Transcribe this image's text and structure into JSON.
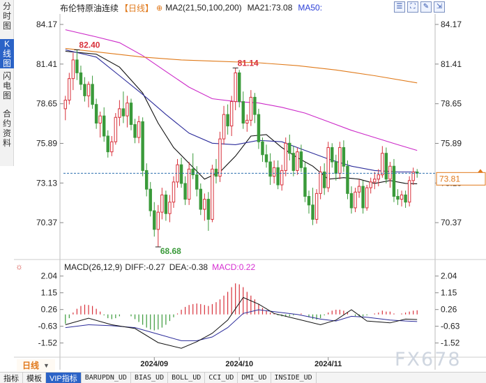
{
  "left_tabs": [
    {
      "label": "分时图",
      "active": false
    },
    {
      "label": "K线图",
      "active": true
    },
    {
      "label": "闪电图",
      "active": false
    },
    {
      "label": "合约资料",
      "active": false
    }
  ],
  "header": {
    "instrument": "布伦特原油连续",
    "period": "【日线】",
    "ma_label": "MA2(21,50,100,200)",
    "ma21": "MA21:73.08",
    "ma50": "MA50:"
  },
  "macd_header": {
    "label": "MACD(26,12,9)",
    "diff": "DIFF:-0.27",
    "dea": "DEA:-0.38",
    "macd": "MACD:0.22"
  },
  "period_badge": "日线",
  "watermark": "FX678",
  "bottom_tabs": [
    "指标",
    "模板",
    "VIP指标",
    "BARUPDN_UD",
    "BIAS_UD",
    "BOLL_UD",
    "CCI_UD",
    "DMI_UD",
    "INSIDE_UD"
  ],
  "colors": {
    "up": "#d8303a",
    "down": "#3a9a3a",
    "ma_black": "#111111",
    "ma_blue": "#2b2b9a",
    "ma_magenta": "#cc28c8",
    "ma_orange": "#e07a1a",
    "last_price": "#e0781a"
  },
  "chart_data": [
    {
      "type": "candlestick",
      "name": "price",
      "y_ticks": [
        "84.17",
        "81.41",
        "78.65",
        "75.89",
        "73.13",
        "70.37"
      ],
      "y_tick_values": [
        84.17,
        81.41,
        78.65,
        75.89,
        73.13,
        70.37
      ],
      "ylim": [
        67.9,
        84.9
      ],
      "x_ticks": [
        "2024/09",
        "2024/10",
        "2024/11"
      ],
      "x_tick_index": [
        23,
        45,
        68
      ],
      "last_price": 73.81,
      "last_price_label": "73.81",
      "annotations": [
        {
          "label": "82.40",
          "index": 3,
          "value": 82.4
        },
        {
          "label": "81.14",
          "index": 44,
          "value": 81.14
        },
        {
          "label": "68.68",
          "index": 24,
          "value": 68.68
        }
      ],
      "ohlc": [
        [
          78.3,
          79.2,
          77.5,
          78.9
        ],
        [
          78.9,
          80.8,
          78.6,
          80.4
        ],
        [
          80.4,
          82.2,
          79.6,
          81.7
        ],
        [
          81.7,
          82.4,
          80.3,
          80.8
        ],
        [
          80.8,
          81.3,
          79.6,
          80.0
        ],
        [
          80.0,
          80.5,
          78.8,
          79.2
        ],
        [
          79.2,
          80.2,
          78.4,
          80.0
        ],
        [
          80.0,
          80.6,
          78.3,
          78.6
        ],
        [
          78.6,
          79.0,
          76.9,
          77.3
        ],
        [
          77.3,
          78.1,
          76.3,
          77.8
        ],
        [
          77.8,
          78.4,
          76.0,
          76.4
        ],
        [
          76.4,
          76.8,
          74.9,
          75.3
        ],
        [
          75.3,
          76.4,
          75.0,
          76.0
        ],
        [
          76.0,
          78.0,
          75.8,
          77.7
        ],
        [
          77.7,
          78.9,
          77.1,
          78.3
        ],
        [
          78.3,
          79.5,
          77.3,
          77.8
        ],
        [
          77.8,
          79.2,
          77.0,
          78.7
        ],
        [
          78.7,
          79.0,
          76.8,
          77.2
        ],
        [
          77.2,
          77.6,
          75.9,
          76.3
        ],
        [
          76.3,
          77.8,
          75.9,
          77.4
        ],
        [
          77.4,
          77.7,
          73.6,
          74.0
        ],
        [
          74.0,
          74.5,
          72.2,
          72.7
        ],
        [
          72.7,
          73.2,
          70.8,
          71.2
        ],
        [
          71.2,
          71.8,
          69.4,
          69.9
        ],
        [
          69.9,
          71.6,
          68.68,
          71.1
        ],
        [
          71.1,
          72.8,
          70.6,
          72.3
        ],
        [
          72.3,
          72.6,
          70.5,
          71.0
        ],
        [
          71.0,
          72.3,
          70.4,
          71.8
        ],
        [
          71.8,
          73.6,
          71.4,
          73.2
        ],
        [
          73.2,
          74.8,
          72.8,
          74.4
        ],
        [
          74.4,
          74.9,
          72.8,
          73.1
        ],
        [
          73.1,
          73.6,
          71.6,
          72.0
        ],
        [
          72.0,
          74.6,
          71.6,
          74.1
        ],
        [
          74.1,
          75.2,
          73.4,
          73.7
        ],
        [
          73.7,
          74.3,
          72.2,
          72.7
        ],
        [
          72.7,
          73.1,
          70.9,
          71.3
        ],
        [
          71.3,
          72.4,
          70.5,
          72.0
        ],
        [
          72.0,
          72.5,
          69.8,
          70.6
        ],
        [
          70.6,
          74.4,
          70.4,
          74.1
        ],
        [
          74.1,
          74.8,
          73.1,
          73.6
        ],
        [
          73.6,
          76.7,
          73.2,
          76.2
        ],
        [
          76.2,
          78.5,
          75.8,
          77.9
        ],
        [
          77.9,
          78.6,
          76.5,
          77.1
        ],
        [
          77.1,
          79.2,
          76.4,
          78.8
        ],
        [
          78.8,
          81.14,
          78.2,
          80.8
        ],
        [
          80.8,
          81.0,
          78.4,
          78.8
        ],
        [
          78.8,
          79.5,
          76.9,
          77.3
        ],
        [
          77.3,
          77.9,
          76.7,
          77.5
        ],
        [
          77.5,
          79.6,
          77.1,
          79.1
        ],
        [
          79.1,
          79.4,
          77.3,
          77.9
        ],
        [
          77.9,
          78.3,
          75.5,
          76.0
        ],
        [
          76.0,
          76.3,
          74.6,
          75.1
        ],
        [
          75.1,
          75.8,
          74.2,
          74.6
        ],
        [
          74.6,
          75.2,
          73.0,
          73.6
        ],
        [
          73.6,
          74.7,
          73.1,
          74.2
        ],
        [
          74.2,
          74.7,
          72.7,
          73.0
        ],
        [
          73.0,
          74.4,
          72.6,
          74.0
        ],
        [
          74.0,
          76.3,
          73.6,
          75.9
        ],
        [
          75.9,
          76.5,
          74.7,
          75.2
        ],
        [
          75.2,
          75.7,
          73.6,
          74.0
        ],
        [
          74.0,
          75.6,
          73.7,
          75.3
        ],
        [
          75.3,
          75.8,
          73.9,
          74.2
        ],
        [
          74.2,
          74.6,
          71.8,
          72.2
        ],
        [
          72.2,
          72.6,
          71.0,
          71.6
        ],
        [
          71.6,
          72.8,
          70.2,
          70.6
        ],
        [
          70.6,
          72.7,
          70.3,
          72.4
        ],
        [
          72.4,
          74.3,
          72.0,
          73.9
        ],
        [
          73.9,
          74.5,
          72.3,
          72.8
        ],
        [
          72.8,
          76.0,
          72.5,
          75.6
        ],
        [
          75.6,
          75.9,
          74.2,
          74.6
        ],
        [
          74.6,
          75.1,
          73.3,
          73.8
        ],
        [
          73.8,
          76.0,
          73.4,
          75.6
        ],
        [
          75.6,
          76.1,
          73.9,
          74.3
        ],
        [
          74.3,
          74.7,
          72.0,
          72.4
        ],
        [
          72.4,
          72.9,
          71.0,
          71.4
        ],
        [
          71.4,
          72.8,
          71.1,
          72.5
        ],
        [
          72.5,
          73.4,
          72.1,
          72.9
        ],
        [
          72.9,
          73.3,
          71.0,
          71.4
        ],
        [
          71.4,
          73.0,
          71.2,
          72.8
        ],
        [
          72.8,
          73.5,
          72.4,
          73.2
        ],
        [
          73.2,
          73.9,
          72.7,
          73.4
        ],
        [
          73.4,
          74.1,
          72.9,
          73.7
        ],
        [
          73.7,
          75.7,
          73.5,
          75.2
        ],
        [
          75.2,
          75.6,
          73.1,
          73.4
        ],
        [
          73.4,
          74.6,
          72.8,
          74.3
        ],
        [
          74.3,
          74.8,
          71.8,
          72.2
        ],
        [
          72.2,
          72.7,
          71.6,
          72.0
        ],
        [
          72.0,
          72.6,
          71.5,
          72.3
        ],
        [
          72.3,
          72.6,
          71.4,
          71.8
        ],
        [
          71.8,
          73.6,
          71.5,
          73.3
        ],
        [
          73.3,
          74.2,
          73.0,
          73.9
        ],
        [
          73.9,
          74.1,
          73.5,
          73.81
        ]
      ],
      "ma_lines": [
        {
          "key": "ma_black",
          "values": [
            [
              0,
              82.3
            ],
            [
              8,
              82.1
            ],
            [
              14,
              81.2
            ],
            [
              20,
              79.4
            ],
            [
              24,
              77.3
            ],
            [
              28,
              75.6
            ],
            [
              32,
              74.5
            ],
            [
              36,
              73.4
            ],
            [
              40,
              73.9
            ],
            [
              44,
              75.0
            ],
            [
              48,
              76.4
            ],
            [
              52,
              76.5
            ],
            [
              56,
              75.6
            ],
            [
              60,
              74.9
            ],
            [
              64,
              74.3
            ],
            [
              68,
              73.4
            ],
            [
              72,
              73.5
            ],
            [
              76,
              73.4
            ],
            [
              80,
              73.1
            ],
            [
              84,
              73.3
            ],
            [
              88,
              73.1
            ],
            [
              91,
              73.08
            ]
          ]
        },
        {
          "key": "ma_blue",
          "values": [
            [
              0,
              82.4
            ],
            [
              8,
              81.9
            ],
            [
              14,
              80.6
            ],
            [
              20,
              79.3
            ],
            [
              26,
              77.9
            ],
            [
              32,
              76.6
            ],
            [
              38,
              75.9
            ],
            [
              44,
              75.8
            ],
            [
              50,
              76.1
            ],
            [
              56,
              76.0
            ],
            [
              62,
              75.4
            ],
            [
              68,
              74.8
            ],
            [
              74,
              74.3
            ],
            [
              80,
              74.0
            ],
            [
              86,
              73.9
            ],
            [
              91,
              73.9
            ]
          ]
        },
        {
          "key": "ma_magenta",
          "values": [
            [
              0,
              83.8
            ],
            [
              8,
              83.3
            ],
            [
              14,
              82.9
            ],
            [
              20,
              82.0
            ],
            [
              26,
              80.9
            ],
            [
              32,
              79.8
            ],
            [
              38,
              79.0
            ],
            [
              44,
              78.8
            ],
            [
              50,
              78.7
            ],
            [
              56,
              78.4
            ],
            [
              62,
              78.0
            ],
            [
              68,
              77.4
            ],
            [
              74,
              76.8
            ],
            [
              80,
              76.3
            ],
            [
              86,
              75.8
            ],
            [
              91,
              75.4
            ]
          ]
        },
        {
          "key": "ma_orange",
          "values": [
            [
              0,
              82.5
            ],
            [
              10,
              82.2
            ],
            [
              20,
              81.9
            ],
            [
              30,
              81.7
            ],
            [
              40,
              81.6
            ],
            [
              50,
              81.5
            ],
            [
              60,
              81.3
            ],
            [
              70,
              81.0
            ],
            [
              80,
              80.6
            ],
            [
              91,
              80.1
            ]
          ]
        }
      ]
    },
    {
      "type": "bar+line",
      "name": "macd",
      "y_ticks": [
        "2.04",
        "1.15",
        "0.26",
        "-0.63",
        "-1.52"
      ],
      "y_tick_values": [
        2.04,
        1.15,
        0.26,
        -0.63,
        -1.52
      ],
      "ylim": [
        -2.2,
        2.4
      ],
      "histogram": [
        -0.5,
        -0.2,
        0.1,
        0.3,
        0.45,
        0.52,
        0.5,
        0.45,
        0.3,
        0.15,
        -0.05,
        -0.2,
        -0.25,
        -0.2,
        -0.1,
        0.0,
        0.0,
        -0.1,
        -0.25,
        -0.4,
        -0.55,
        -0.7,
        -0.8,
        -0.85,
        -0.8,
        -0.7,
        -0.55,
        -0.35,
        -0.15,
        0.05,
        0.25,
        0.4,
        0.5,
        0.55,
        0.58,
        0.55,
        0.5,
        0.45,
        0.55,
        0.65,
        0.8,
        1.0,
        1.2,
        1.45,
        1.65,
        1.6,
        1.45,
        1.2,
        1.0,
        0.8,
        0.55,
        0.35,
        0.2,
        0.1,
        0.05,
        -0.05,
        -0.1,
        -0.12,
        -0.1,
        -0.05,
        0.0,
        0.05,
        0.0,
        -0.15,
        -0.25,
        -0.28,
        -0.2,
        -0.05,
        0.1,
        0.2,
        0.25,
        0.25,
        0.2,
        0.1,
        0.0,
        -0.08,
        -0.1,
        -0.1,
        -0.05,
        0.0,
        0.05,
        0.1,
        0.2,
        0.15,
        0.15,
        0.05,
        0.0,
        0.05,
        0.1,
        0.15,
        0.2,
        0.22
      ],
      "diff": [
        [
          0,
          -0.55
        ],
        [
          6,
          -0.2
        ],
        [
          12,
          -0.55
        ],
        [
          18,
          -0.75
        ],
        [
          24,
          -1.5
        ],
        [
          30,
          -1.8
        ],
        [
          34,
          -1.45
        ],
        [
          38,
          -1.0
        ],
        [
          42,
          -0.3
        ],
        [
          46,
          0.9
        ],
        [
          50,
          0.55
        ],
        [
          54,
          0.05
        ],
        [
          60,
          -0.25
        ],
        [
          66,
          -0.55
        ],
        [
          70,
          -0.3
        ],
        [
          74,
          0.25
        ],
        [
          78,
          -0.35
        ],
        [
          84,
          -0.45
        ],
        [
          88,
          -0.25
        ],
        [
          91,
          -0.27
        ]
      ],
      "dea": [
        [
          0,
          -0.7
        ],
        [
          6,
          -0.55
        ],
        [
          12,
          -0.6
        ],
        [
          18,
          -0.7
        ],
        [
          24,
          -1.05
        ],
        [
          30,
          -1.4
        ],
        [
          34,
          -1.4
        ],
        [
          38,
          -1.2
        ],
        [
          42,
          -0.7
        ],
        [
          46,
          0.05
        ],
        [
          50,
          0.25
        ],
        [
          54,
          0.15
        ],
        [
          60,
          0.0
        ],
        [
          66,
          -0.25
        ],
        [
          70,
          -0.35
        ],
        [
          74,
          -0.1
        ],
        [
          78,
          -0.15
        ],
        [
          84,
          -0.3
        ],
        [
          88,
          -0.35
        ],
        [
          91,
          -0.38
        ]
      ]
    }
  ]
}
